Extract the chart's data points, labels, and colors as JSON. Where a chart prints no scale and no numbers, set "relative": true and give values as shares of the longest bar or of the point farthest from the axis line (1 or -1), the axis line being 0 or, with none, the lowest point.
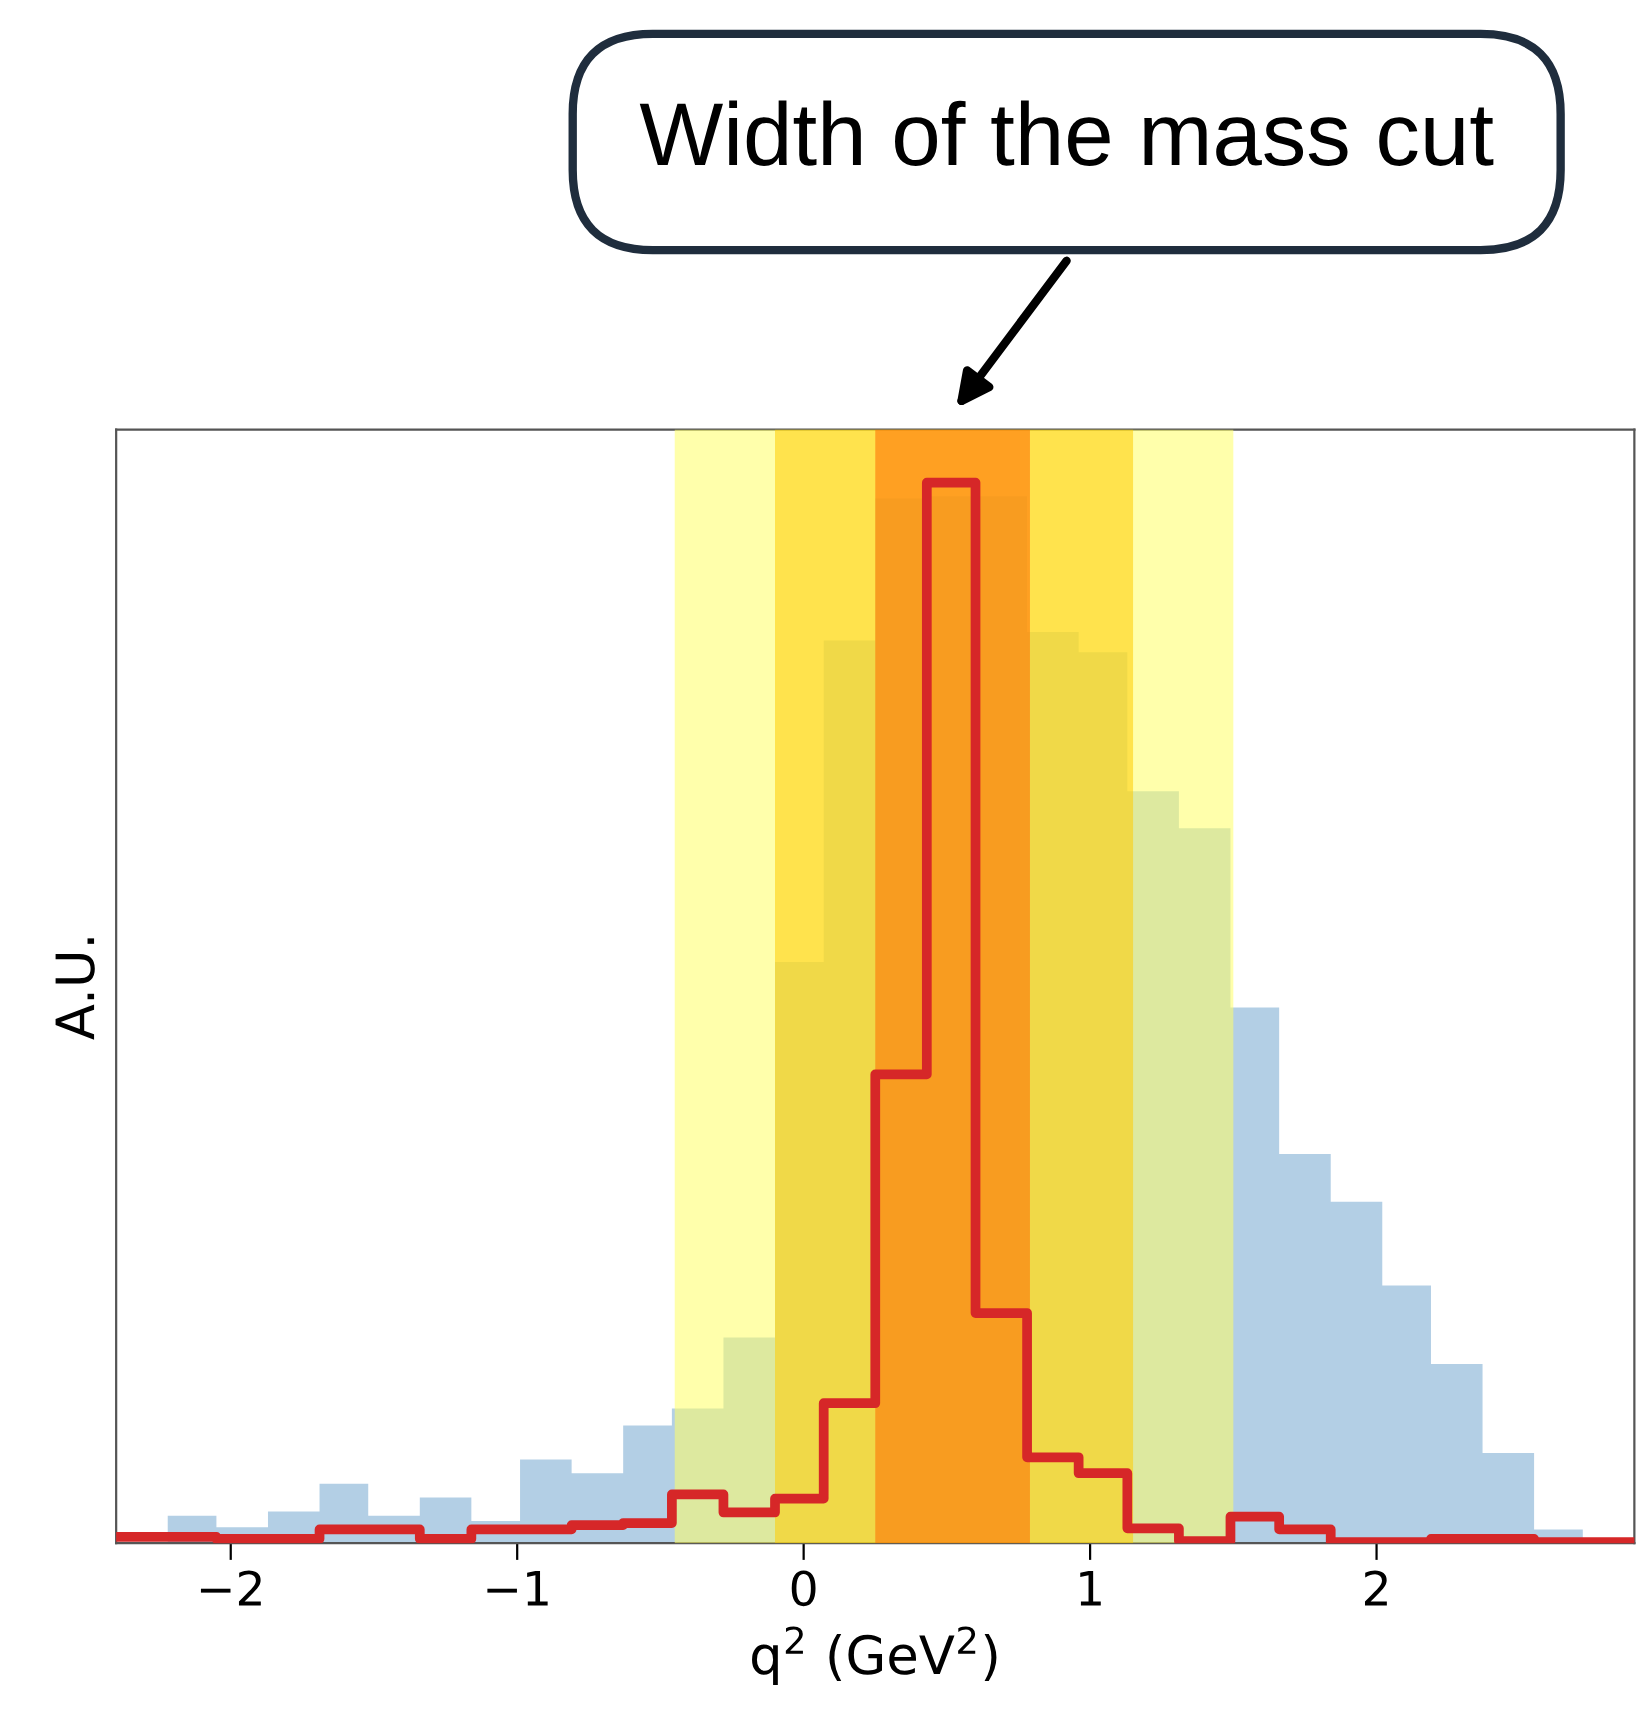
{
  "chart_data": {
    "type": "histogram",
    "relative": true,
    "xlabel": "q$^{2}$ (GeV$^{2}$)",
    "ylabel": "A.U.",
    "annotations": [
      "Width of the mass cut"
    ],
    "bins": [
      -2.4,
      -2.22,
      -2.05,
      -1.87,
      -1.69,
      -1.52,
      -1.34,
      -1.16,
      -0.99,
      -0.81,
      -0.63,
      -0.46,
      -0.28,
      -0.1,
      0.07,
      0.25,
      0.43,
      0.6,
      0.78,
      0.96,
      1.13,
      1.31,
      1.49,
      1.66,
      1.84,
      2.02,
      2.19,
      2.37,
      2.55,
      2.72,
      2.9
    ],
    "series": [
      {
        "color": "#b3cfe5",
        "values": [
          0,
          0.026,
          0.015,
          0.03,
          0.056,
          0.026,
          0.043,
          0.021,
          0.079,
          0.066,
          0.111,
          0.127,
          0.194,
          0.548,
          0.851,
          0.985,
          0.987,
          0.987,
          0.859,
          0.84,
          0.709,
          0.674,
          0.505,
          0.367,
          0.322,
          0.243,
          0.169,
          0.085,
          0.013,
          0
        ]
      },
      {
        "type": "step",
        "color": "#d62728",
        "x": [
          -2.4,
          -2.22,
          -2.05,
          -1.87,
          -1.69,
          -1.52,
          -1.34,
          -1.16,
          -0.99,
          -0.81,
          -0.63,
          -0.46,
          -0.28,
          -0.1,
          0.07,
          0.25,
          0.43,
          0.6,
          0.78,
          0.96,
          1.13,
          1.31,
          1.49,
          1.66,
          1.84,
          2.02,
          2.19,
          2.37,
          2.55,
          2.72,
          2.9
        ],
        "values": [
          0.006,
          0.006,
          0.004,
          0.004,
          0.013,
          0.013,
          0.004,
          0.013,
          0.013,
          0.017,
          0.019,
          0.046,
          0.029,
          0.042,
          0.132,
          0.442,
          1,
          0.217,
          0.081,
          0.066,
          0.014,
          0.002,
          0.025,
          0.013,
          0.001,
          0.001,
          0.004,
          0.004,
          0.001,
          0.001,
          0.001
        ]
      }
    ],
    "bands": [
      {
        "axis": "x",
        "from": -0.45,
        "to": 1.5,
        "color": "#ffff66"
      },
      {
        "axis": "x",
        "from": -0.1,
        "to": 1.15,
        "color": "#ffcc00"
      },
      {
        "axis": "x",
        "from": 0.25,
        "to": 0.79,
        "color": "#ff6a00"
      }
    ],
    "xlim": [
      -2.4,
      2.9
    ],
    "xticks": [
      {
        "value": -2,
        "label": "−2"
      },
      {
        "value": -1,
        "label": "−1"
      },
      0,
      1,
      2
    ],
    "grid": false,
    "legend": false
  }
}
